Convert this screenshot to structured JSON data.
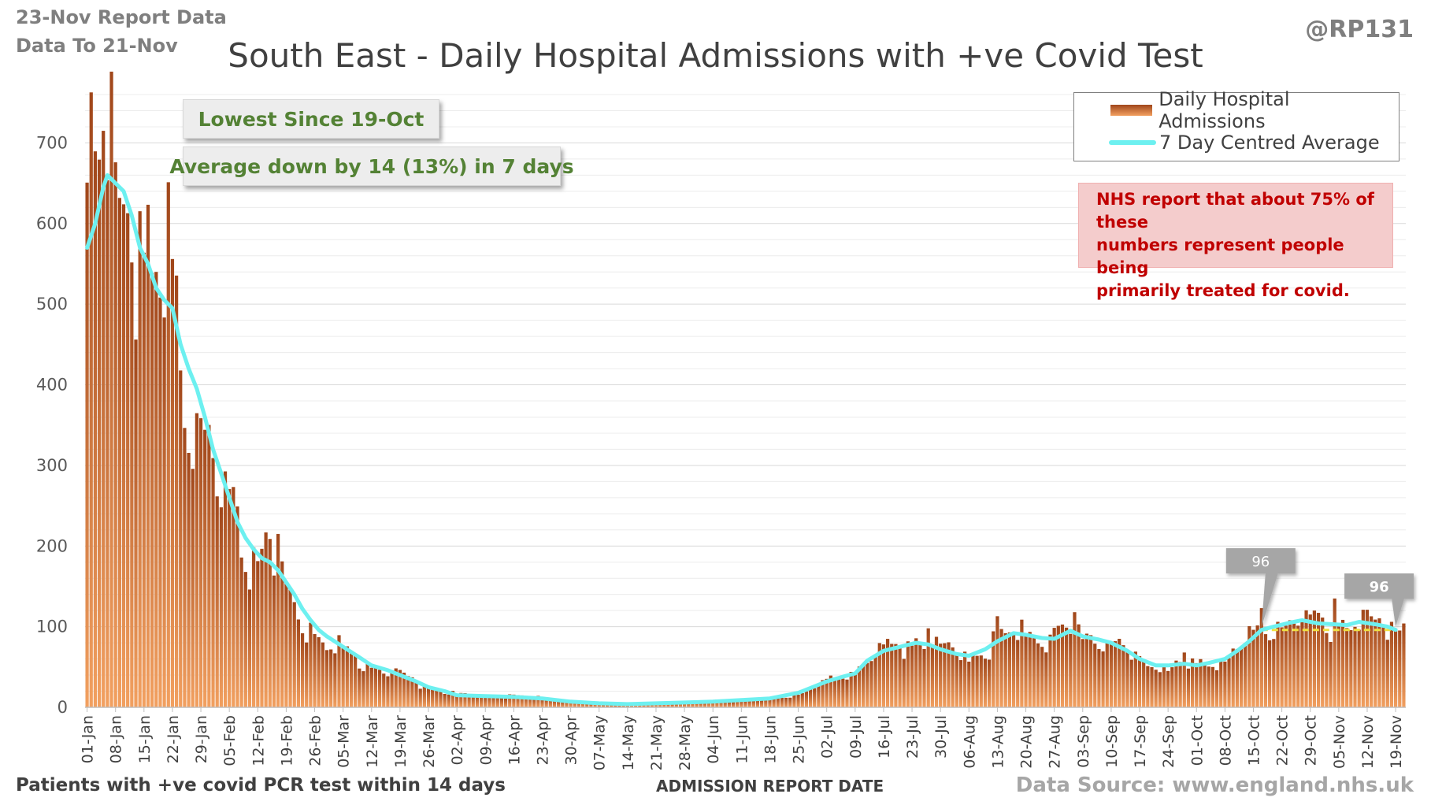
{
  "report": {
    "line1": "23-Nov Report Data",
    "line2": "Data To 21-Nov",
    "handle": "@RP131"
  },
  "footer": {
    "left": "Patients with +ve covid PCR test within 14 days",
    "source": "Data Source: www.england.nhs.uk"
  },
  "callouts": {
    "lowest": "Lowest Since 19-Oct",
    "average": "Average down by 14 (13%) in 7 days"
  },
  "note": {
    "line1": "NHS report that about 75% of these",
    "line2": "numbers represent people being",
    "line3": "primarily treated for covid."
  },
  "chart_data": {
    "type": "bar",
    "title": "South East - Daily Hospital Admissions with +ve Covid Test",
    "xlabel": "ADMISSION REPORT DATE",
    "ylabel": "",
    "ylim": [
      0,
      760
    ],
    "yticks": [
      0,
      100,
      200,
      300,
      400,
      500,
      600,
      700
    ],
    "grid": true,
    "legend_position": "top-right",
    "x_tick_labels": [
      "01-Jan",
      "08-Jan",
      "15-Jan",
      "22-Jan",
      "29-Jan",
      "05-Feb",
      "12-Feb",
      "19-Feb",
      "26-Feb",
      "05-Mar",
      "12-Mar",
      "19-Mar",
      "26-Mar",
      "02-Apr",
      "09-Apr",
      "16-Apr",
      "23-Apr",
      "30-Apr",
      "07-May",
      "14-May",
      "21-May",
      "28-May",
      "04-Jun",
      "11-Jun",
      "18-Jun",
      "25-Jun",
      "02-Jul",
      "09-Jul",
      "16-Jul",
      "23-Jul",
      "30-Jul",
      "06-Aug",
      "13-Aug",
      "20-Aug",
      "27-Aug",
      "03-Sep",
      "10-Sep",
      "17-Sep",
      "24-Sep",
      "01-Oct",
      "08-Oct",
      "15-Oct",
      "22-Oct",
      "29-Oct",
      "05-Nov",
      "12-Nov",
      "19-Nov"
    ],
    "series": [
      {
        "name": "Daily Hospital Admissions",
        "kind": "bar",
        "color_top": "#a0461a",
        "color_bottom": "#f2a060",
        "x_start": "01-Jan",
        "x_end": "21-Nov",
        "anchors": [
          [
            "01-Jan",
            638
          ],
          [
            "03-Jan",
            665
          ],
          [
            "05-Jan",
            645
          ],
          [
            "06-Jan",
            715
          ],
          [
            "08-Jan",
            650
          ],
          [
            "10-Jan",
            640
          ],
          [
            "12-Jan",
            628
          ],
          [
            "14-Jan",
            570
          ],
          [
            "16-Jan",
            560
          ],
          [
            "17-Jan",
            472
          ],
          [
            "19-Jan",
            520
          ],
          [
            "21-Jan",
            556
          ],
          [
            "23-Jan",
            470
          ],
          [
            "25-Jan",
            400
          ],
          [
            "27-Jan",
            370
          ],
          [
            "29-Jan",
            390
          ],
          [
            "31-Jan",
            305
          ],
          [
            "02-Feb",
            280
          ],
          [
            "04-Feb",
            265
          ],
          [
            "06-Feb",
            232
          ],
          [
            "08-Feb",
            205
          ],
          [
            "10-Feb",
            180
          ],
          [
            "12-Feb",
            190
          ],
          [
            "14-Feb",
            217
          ],
          [
            "16-Feb",
            175
          ],
          [
            "18-Feb",
            165
          ],
          [
            "20-Feb",
            135
          ],
          [
            "22-Feb",
            115
          ],
          [
            "24-Feb",
            102
          ],
          [
            "26-Feb",
            95
          ],
          [
            "28-Feb",
            85
          ],
          [
            "02-Mar",
            78
          ],
          [
            "05-Mar",
            75
          ],
          [
            "08-Mar",
            62
          ],
          [
            "12-Mar",
            52
          ],
          [
            "16-Mar",
            48
          ],
          [
            "19-Mar",
            42
          ],
          [
            "23-Mar",
            33
          ],
          [
            "26-Mar",
            26
          ],
          [
            "30-Mar",
            20
          ],
          [
            "02-Apr",
            16
          ],
          [
            "09-Apr",
            15
          ],
          [
            "16-Apr",
            14
          ],
          [
            "23-Apr",
            12
          ],
          [
            "30-Apr",
            8
          ],
          [
            "07-May",
            5
          ],
          [
            "14-May",
            4
          ],
          [
            "21-May",
            6
          ],
          [
            "28-May",
            7
          ],
          [
            "04-Jun",
            8
          ],
          [
            "11-Jun",
            9
          ],
          [
            "18-Jun",
            10
          ],
          [
            "25-Jun",
            16
          ],
          [
            "02-Jul",
            32
          ],
          [
            "06-Jul",
            40
          ],
          [
            "09-Jul",
            45
          ],
          [
            "12-Jul",
            60
          ],
          [
            "16-Jul",
            72
          ],
          [
            "20-Jul",
            78
          ],
          [
            "24-Jul",
            82
          ],
          [
            "27-Jul",
            82
          ],
          [
            "30-Jul",
            75
          ],
          [
            "03-Aug",
            68
          ],
          [
            "06-Aug",
            62
          ],
          [
            "10-Aug",
            72
          ],
          [
            "13-Aug",
            85
          ],
          [
            "17-Aug",
            92
          ],
          [
            "20-Aug",
            92
          ],
          [
            "24-Aug",
            88
          ],
          [
            "27-Aug",
            90
          ],
          [
            "31-Aug",
            95
          ],
          [
            "03-Sep",
            90
          ],
          [
            "07-Sep",
            85
          ],
          [
            "10-Sep",
            80
          ],
          [
            "14-Sep",
            68
          ],
          [
            "17-Sep",
            60
          ],
          [
            "21-Sep",
            52
          ],
          [
            "24-Sep",
            50
          ],
          [
            "28-Sep",
            55
          ],
          [
            "01-Oct",
            52
          ],
          [
            "04-Oct",
            56
          ],
          [
            "08-Oct",
            60
          ],
          [
            "11-Oct",
            72
          ],
          [
            "14-Oct",
            88
          ],
          [
            "17-Oct",
            96
          ],
          [
            "20-Oct",
            100
          ],
          [
            "24-Oct",
            105
          ],
          [
            "27-Oct",
            110
          ],
          [
            "31-Oct",
            108
          ],
          [
            "04-Nov",
            105
          ],
          [
            "07-Nov",
            102
          ],
          [
            "11-Nov",
            108
          ],
          [
            "14-Nov",
            104
          ],
          [
            "17-Nov",
            100
          ],
          [
            "21-Nov",
            96
          ]
        ],
        "spikes": [
          [
            "05-Jan",
            715
          ],
          [
            "18-Jan",
            540
          ],
          [
            "22-Jan",
            556
          ],
          [
            "14-Feb",
            217
          ],
          [
            "17-Feb",
            215
          ],
          [
            "16-Jul",
            78
          ],
          [
            "27-Jul",
            98
          ],
          [
            "13-Aug",
            113
          ],
          [
            "01-Sep",
            118
          ],
          [
            "28-Sep",
            68
          ],
          [
            "17-Oct",
            123
          ],
          [
            "30-Oct",
            120
          ],
          [
            "04-Nov",
            135
          ],
          [
            "11-Nov",
            121
          ],
          [
            "21-Nov",
            104
          ]
        ]
      },
      {
        "name": "7 Day Centred Average",
        "kind": "line",
        "color": "#6df0f0",
        "points": [
          [
            "01-Jan",
            570
          ],
          [
            "03-Jan",
            600
          ],
          [
            "05-Jan",
            645
          ],
          [
            "06-Jan",
            660
          ],
          [
            "08-Jan",
            650
          ],
          [
            "10-Jan",
            640
          ],
          [
            "12-Jan",
            610
          ],
          [
            "14-Jan",
            570
          ],
          [
            "16-Jan",
            550
          ],
          [
            "18-Jan",
            520
          ],
          [
            "20-Jan",
            505
          ],
          [
            "22-Jan",
            495
          ],
          [
            "24-Jan",
            450
          ],
          [
            "26-Jan",
            420
          ],
          [
            "28-Jan",
            395
          ],
          [
            "30-Jan",
            360
          ],
          [
            "01-Feb",
            320
          ],
          [
            "03-Feb",
            290
          ],
          [
            "05-Feb",
            260
          ],
          [
            "07-Feb",
            230
          ],
          [
            "09-Feb",
            210
          ],
          [
            "11-Feb",
            196
          ],
          [
            "13-Feb",
            185
          ],
          [
            "15-Feb",
            180
          ],
          [
            "17-Feb",
            170
          ],
          [
            "19-Feb",
            155
          ],
          [
            "21-Feb",
            140
          ],
          [
            "23-Feb",
            122
          ],
          [
            "25-Feb",
            108
          ],
          [
            "27-Feb",
            96
          ],
          [
            "01-Mar",
            88
          ],
          [
            "05-Mar",
            75
          ],
          [
            "09-Mar",
            62
          ],
          [
            "12-Mar",
            52
          ],
          [
            "16-Mar",
            46
          ],
          [
            "19-Mar",
            40
          ],
          [
            "23-Mar",
            32
          ],
          [
            "26-Mar",
            25
          ],
          [
            "30-Mar",
            20
          ],
          [
            "02-Apr",
            15
          ],
          [
            "09-Apr",
            14
          ],
          [
            "16-Apr",
            13
          ],
          [
            "23-Apr",
            11
          ],
          [
            "30-Apr",
            7
          ],
          [
            "07-May",
            5
          ],
          [
            "14-May",
            4
          ],
          [
            "21-May",
            5
          ],
          [
            "28-May",
            6
          ],
          [
            "04-Jun",
            7
          ],
          [
            "11-Jun",
            9
          ],
          [
            "18-Jun",
            11
          ],
          [
            "25-Jun",
            18
          ],
          [
            "02-Jul",
            32
          ],
          [
            "06-Jul",
            38
          ],
          [
            "09-Jul",
            42
          ],
          [
            "12-Jul",
            58
          ],
          [
            "16-Jul",
            70
          ],
          [
            "20-Jul",
            75
          ],
          [
            "24-Jul",
            80
          ],
          [
            "27-Jul",
            78
          ],
          [
            "30-Jul",
            72
          ],
          [
            "03-Aug",
            66
          ],
          [
            "06-Aug",
            64
          ],
          [
            "10-Aug",
            72
          ],
          [
            "13-Aug",
            82
          ],
          [
            "17-Aug",
            92
          ],
          [
            "20-Aug",
            90
          ],
          [
            "24-Aug",
            86
          ],
          [
            "27-Aug",
            85
          ],
          [
            "31-Aug",
            95
          ],
          [
            "03-Sep",
            88
          ],
          [
            "07-Sep",
            84
          ],
          [
            "10-Sep",
            80
          ],
          [
            "14-Sep",
            70
          ],
          [
            "17-Sep",
            60
          ],
          [
            "21-Sep",
            52
          ],
          [
            "24-Sep",
            52
          ],
          [
            "28-Sep",
            54
          ],
          [
            "01-Oct",
            52
          ],
          [
            "04-Oct",
            55
          ],
          [
            "08-Oct",
            60
          ],
          [
            "11-Oct",
            70
          ],
          [
            "14-Oct",
            82
          ],
          [
            "17-Oct",
            96
          ],
          [
            "20-Oct",
            100
          ],
          [
            "24-Oct",
            105
          ],
          [
            "27-Oct",
            108
          ],
          [
            "31-Oct",
            104
          ],
          [
            "04-Nov",
            103
          ],
          [
            "07-Nov",
            102
          ],
          [
            "10-Nov",
            106
          ],
          [
            "14-Nov",
            103
          ],
          [
            "17-Nov",
            100
          ],
          [
            "19-Nov",
            96
          ]
        ]
      }
    ],
    "reference_line": {
      "from": "17-Oct",
      "to": "19-Nov",
      "value": 96,
      "color": "#f0e040"
    },
    "annotations": [
      {
        "label": "96",
        "at": "17-Oct",
        "value": 96,
        "style": "gray-pointer"
      },
      {
        "label": "96",
        "at": "19-Nov",
        "value": 96,
        "style": "gray-pointer"
      }
    ]
  }
}
